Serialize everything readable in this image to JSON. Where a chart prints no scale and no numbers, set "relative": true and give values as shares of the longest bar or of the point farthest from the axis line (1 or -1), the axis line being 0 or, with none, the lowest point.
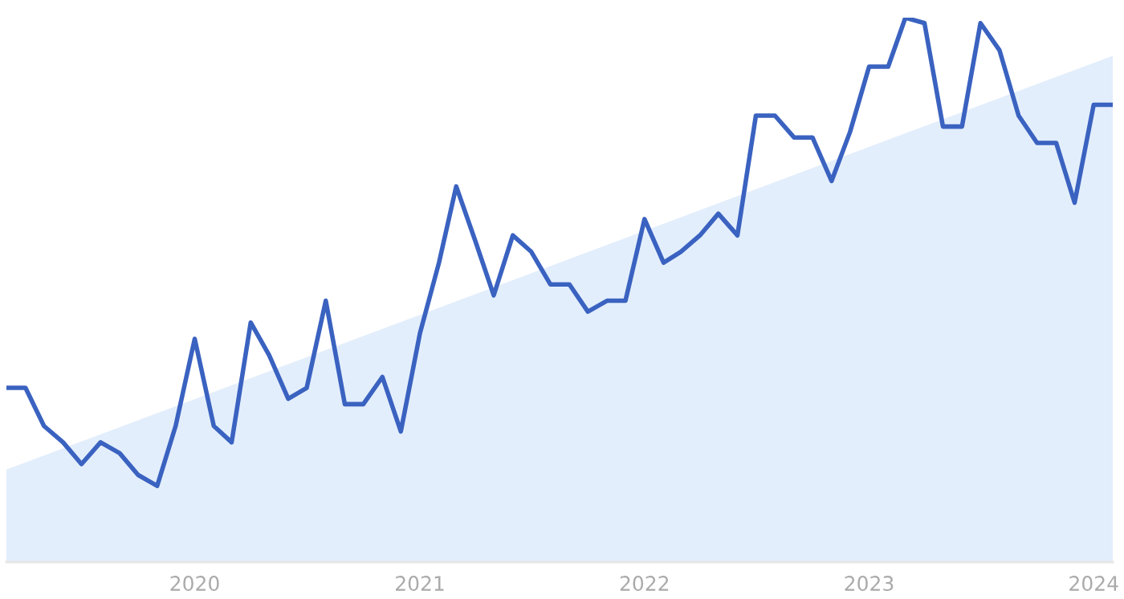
{
  "chart_data": {
    "type": "line",
    "relative": true,
    "x": [
      "2019-03",
      "2019-04",
      "2019-05",
      "2019-06",
      "2019-07",
      "2019-08",
      "2019-09",
      "2019-10",
      "2019-11",
      "2019-12",
      "2020-01",
      "2020-02",
      "2020-03",
      "2020-04",
      "2020-05",
      "2020-06",
      "2020-07",
      "2020-08",
      "2020-09",
      "2020-10",
      "2020-11",
      "2020-12",
      "2021-01",
      "2021-02",
      "2021-03",
      "2021-04",
      "2021-05",
      "2021-06",
      "2021-07",
      "2021-08",
      "2021-09",
      "2021-10",
      "2021-11",
      "2021-12",
      "2022-01",
      "2022-02",
      "2022-03",
      "2022-04",
      "2022-05",
      "2022-06",
      "2022-07",
      "2022-08",
      "2022-09",
      "2022-10",
      "2022-11",
      "2022-12",
      "2023-01",
      "2023-02",
      "2023-03",
      "2023-04",
      "2023-05",
      "2023-06",
      "2023-07",
      "2023-08",
      "2023-09",
      "2023-10",
      "2023-11",
      "2023-12",
      "2024-01",
      "2024-02"
    ],
    "xlim": [
      "2019-03",
      "2024-02"
    ],
    "xticks": [
      {
        "value": "2020-01",
        "label": "2020"
      },
      {
        "value": "2021-01",
        "label": "2021"
      },
      {
        "value": "2022-01",
        "label": "2022"
      },
      {
        "value": "2023-01",
        "label": "2023"
      },
      {
        "value": "2024-01",
        "label": "2024"
      }
    ],
    "series": [
      {
        "type": "area",
        "color": "#e3eefc",
        "x": [
          "2019-03",
          "2024-02"
        ],
        "values": [
          0.17,
          0.93
        ]
      },
      {
        "color": "#3a62c0",
        "values": [
          0.32,
          0.32,
          0.25,
          0.22,
          0.18,
          0.22,
          0.2,
          0.16,
          0.14,
          0.25,
          0.41,
          0.25,
          0.22,
          0.44,
          0.38,
          0.3,
          0.32,
          0.48,
          0.29,
          0.29,
          0.34,
          0.24,
          0.42,
          0.55,
          0.69,
          0.59,
          0.49,
          0.6,
          0.57,
          0.51,
          0.51,
          0.46,
          0.48,
          0.48,
          0.63,
          0.55,
          0.57,
          0.6,
          0.64,
          0.6,
          0.82,
          0.82,
          0.78,
          0.78,
          0.7,
          0.79,
          0.91,
          0.91,
          1,
          0.99,
          0.8,
          0.8,
          0.99,
          0.94,
          0.82,
          0.77,
          0.77,
          0.66,
          0.84,
          0.84
        ]
      }
    ],
    "legend": false,
    "marker": "none",
    "line_style": "solid"
  }
}
